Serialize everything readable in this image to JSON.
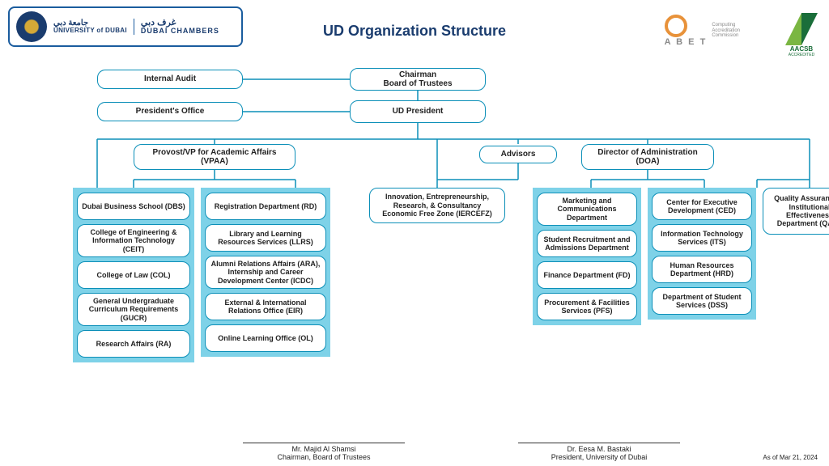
{
  "title": "UD Organization Structure",
  "header": {
    "ud_arabic": "جامعة دبي",
    "ud_eng": "UNIVERSITY of DUBAI",
    "chambers_arabic": "غرف دبي",
    "chambers_eng": "DUBAI CHAMBERS",
    "abet_label": "A B E T",
    "abet_sub1": "Computing",
    "abet_sub2": "Accreditation",
    "abet_sub3": "Commission",
    "aacsb_label": "AACSB",
    "aacsb_sub": "ACCREDITED"
  },
  "colors": {
    "node_border": "#0b8fb8",
    "cluster_bg": "#7ed2e8",
    "connector": "#0b8fb8"
  },
  "nodes": {
    "chairman_l1": "Chairman",
    "chairman_l2": "Board of Trustees",
    "internal_audit": "Internal Audit",
    "president": "UD President",
    "president_office": "President's Office",
    "vpaa_l1": "Provost/VP for Academic Affairs",
    "vpaa_l2": "(VPAA)",
    "advisors": "Advisors",
    "doa_l1": "Director of Administration",
    "doa_l2": "(DOA)",
    "iercefz_l1": "Innovation, Entrepreneurship,",
    "iercefz_l2": "Research, & Consultancy",
    "iercefz_l3": "Economic Free Zone (IERCEFZ)",
    "qaie_l1": "Quality Assurance &",
    "qaie_l2": "Institutional",
    "qaie_l3": "Effectiveness",
    "qaie_l4": "Department (QAIE)"
  },
  "clusters": {
    "vpaa_col1": [
      "Dubai Business School (DBS)",
      "College of Engineering & Information Technology (CEIT)",
      "College of Law (COL)",
      "General Undergraduate Curriculum Requirements (GUCR)",
      "Research Affairs (RA)"
    ],
    "vpaa_col2": [
      "Registration Department (RD)",
      "Library and Learning Resources Services (LLRS)",
      "Alumni Relations Affairs (ARA), Internship and Career Development Center (ICDC)",
      "External & International Relations Office (EIR)",
      "Online Learning Office (OL)"
    ],
    "doa_col1": [
      "Marketing and Communications Department",
      "Student Recruitment and Admissions Department",
      "Finance Department (FD)",
      "Procurement & Facilities Services (PFS)"
    ],
    "doa_col2": [
      "Center for Executive Development (CED)",
      "Information Technology Services (ITS)",
      "Human Resources Department (HRD)",
      "Department of Student Services (DSS)"
    ]
  },
  "signatures": {
    "sig1_name": "Mr. Majid Al Shamsi",
    "sig1_role": "Chairman, Board of Trustees",
    "sig2_name": "Dr. Eesa M. Bastaki",
    "sig2_role": "President, University of Dubai"
  },
  "date": "As of Mar 21, 2024"
}
